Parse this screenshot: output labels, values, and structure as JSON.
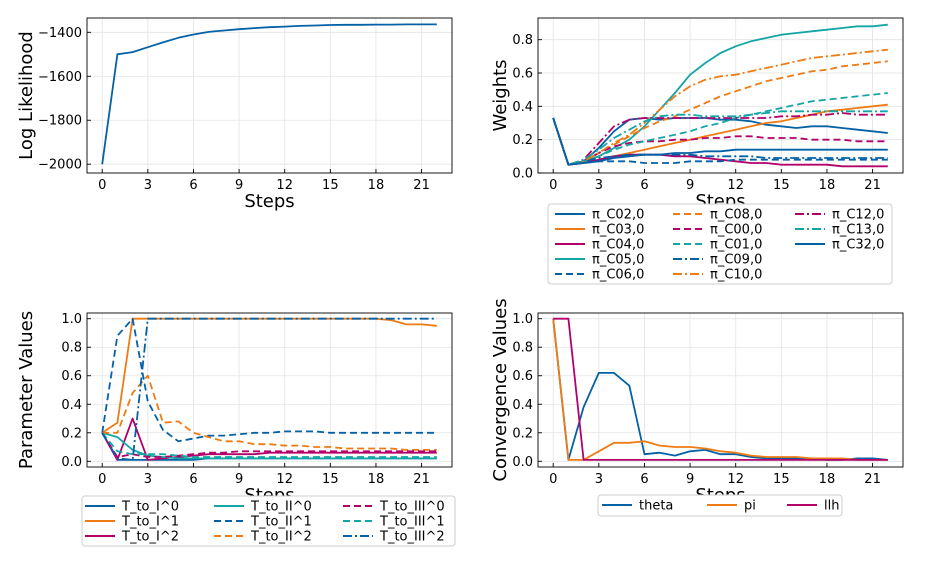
{
  "chart_data": [
    {
      "type": "line",
      "xlabel": "Steps",
      "ylabel": "Log Likelihood",
      "xlim": [
        -1,
        23
      ],
      "ylim": [
        -2040,
        -1335
      ],
      "xticks": [
        0,
        3,
        6,
        9,
        12,
        15,
        18,
        21
      ],
      "yticks": [
        -2000,
        -1800,
        -1600,
        -1400
      ],
      "grid": true,
      "x": [
        0,
        1,
        2,
        3,
        4,
        5,
        6,
        7,
        8,
        9,
        10,
        11,
        12,
        13,
        14,
        15,
        16,
        17,
        18,
        19,
        20,
        21,
        22
      ],
      "series": [
        {
          "color": "#0461a6",
          "style": "solid",
          "values": [
            -2000,
            -1500,
            -1490,
            -1468,
            -1446,
            -1425,
            -1410,
            -1398,
            -1392,
            -1386,
            -1381,
            -1377,
            -1374,
            -1371,
            -1369,
            -1367,
            -1366,
            -1366,
            -1365,
            -1365,
            -1364,
            -1364,
            -1364
          ]
        }
      ]
    },
    {
      "type": "line",
      "xlabel": "Steps",
      "ylabel": "Weights",
      "xlim": [
        -1,
        23
      ],
      "ylim": [
        0,
        0.93
      ],
      "xticks": [
        0,
        3,
        6,
        9,
        12,
        15,
        18,
        21
      ],
      "yticks": [
        0.0,
        0.2,
        0.4,
        0.6,
        0.8
      ],
      "grid": true,
      "legend": "below",
      "x": [
        0,
        1,
        2,
        3,
        4,
        5,
        6,
        7,
        8,
        9,
        10,
        11,
        12,
        13,
        14,
        15,
        16,
        17,
        18,
        19,
        20,
        21,
        22
      ],
      "series": [
        {
          "name": "π_C02,0",
          "color": "#0461a6",
          "style": "solid",
          "values": [
            0.33,
            0.05,
            0.07,
            0.15,
            0.25,
            0.32,
            0.33,
            0.32,
            0.33,
            0.33,
            0.33,
            0.32,
            0.32,
            0.31,
            0.29,
            0.28,
            0.27,
            0.28,
            0.28,
            0.27,
            0.26,
            0.25,
            0.24
          ]
        },
        {
          "name": "π_C03,0",
          "color": "#ee7b14",
          "style": "solid",
          "values": [
            0.33,
            0.05,
            0.06,
            0.08,
            0.1,
            0.12,
            0.14,
            0.16,
            0.18,
            0.2,
            0.22,
            0.24,
            0.26,
            0.28,
            0.3,
            0.31,
            0.33,
            0.35,
            0.37,
            0.38,
            0.39,
            0.4,
            0.41
          ]
        },
        {
          "name": "π_C04,0",
          "color": "#b3006b",
          "style": "solid",
          "values": [
            0.33,
            0.05,
            0.06,
            0.08,
            0.1,
            0.11,
            0.11,
            0.11,
            0.1,
            0.1,
            0.09,
            0.08,
            0.07,
            0.06,
            0.06,
            0.05,
            0.05,
            0.05,
            0.05,
            0.04,
            0.04,
            0.04,
            0.04
          ]
        },
        {
          "name": "π_C05,0",
          "color": "#14a5a5",
          "style": "solid",
          "values": [
            0.33,
            0.05,
            0.07,
            0.1,
            0.15,
            0.2,
            0.28,
            0.38,
            0.48,
            0.59,
            0.66,
            0.72,
            0.76,
            0.79,
            0.81,
            0.83,
            0.84,
            0.85,
            0.86,
            0.87,
            0.88,
            0.88,
            0.89
          ]
        },
        {
          "name": "π_C06,0",
          "color": "#0461a6",
          "style": "dashed",
          "values": [
            0.33,
            0.05,
            0.06,
            0.07,
            0.07,
            0.07,
            0.06,
            0.06,
            0.06,
            0.07,
            0.07,
            0.07,
            0.08,
            0.08,
            0.08,
            0.08,
            0.08,
            0.08,
            0.08,
            0.08,
            0.08,
            0.08,
            0.08
          ]
        },
        {
          "name": "π_C08,0",
          "color": "#ee7b14",
          "style": "dashed",
          "values": [
            0.33,
            0.05,
            0.07,
            0.12,
            0.17,
            0.22,
            0.27,
            0.31,
            0.34,
            0.38,
            0.42,
            0.46,
            0.49,
            0.52,
            0.55,
            0.57,
            0.59,
            0.61,
            0.62,
            0.64,
            0.65,
            0.66,
            0.67
          ]
        },
        {
          "name": "π_C00,0",
          "color": "#b3006b",
          "style": "dashed",
          "values": [
            0.33,
            0.05,
            0.07,
            0.12,
            0.16,
            0.18,
            0.19,
            0.19,
            0.2,
            0.2,
            0.21,
            0.21,
            0.22,
            0.22,
            0.21,
            0.21,
            0.21,
            0.2,
            0.2,
            0.2,
            0.19,
            0.19,
            0.19
          ]
        },
        {
          "name": "π_C01,0",
          "color": "#14a5a5",
          "style": "dashed",
          "values": [
            0.33,
            0.05,
            0.07,
            0.1,
            0.14,
            0.17,
            0.19,
            0.21,
            0.23,
            0.25,
            0.28,
            0.3,
            0.33,
            0.35,
            0.37,
            0.39,
            0.41,
            0.43,
            0.44,
            0.45,
            0.46,
            0.47,
            0.48
          ]
        },
        {
          "name": "π_C09,0",
          "color": "#0461a6",
          "style": "dashdot",
          "values": [
            0.33,
            0.05,
            0.07,
            0.09,
            0.1,
            0.11,
            0.11,
            0.11,
            0.11,
            0.11,
            0.1,
            0.1,
            0.1,
            0.1,
            0.09,
            0.09,
            0.09,
            0.09,
            0.09,
            0.09,
            0.09,
            0.09,
            0.09
          ]
        },
        {
          "name": "π_C10,0",
          "color": "#ee7b14",
          "style": "dashdot",
          "values": [
            0.33,
            0.05,
            0.07,
            0.12,
            0.18,
            0.23,
            0.3,
            0.38,
            0.46,
            0.52,
            0.56,
            0.58,
            0.59,
            0.61,
            0.63,
            0.65,
            0.67,
            0.69,
            0.7,
            0.71,
            0.72,
            0.73,
            0.74
          ]
        },
        {
          "name": "π_C12,0",
          "color": "#b3006b",
          "style": "dashdot",
          "values": [
            0.33,
            0.05,
            0.08,
            0.18,
            0.28,
            0.32,
            0.33,
            0.33,
            0.33,
            0.33,
            0.33,
            0.33,
            0.33,
            0.33,
            0.33,
            0.34,
            0.34,
            0.35,
            0.35,
            0.36,
            0.35,
            0.35,
            0.35
          ]
        },
        {
          "name": "π_C13,0",
          "color": "#14a5a5",
          "style": "dashdot",
          "values": [
            0.33,
            0.05,
            0.08,
            0.14,
            0.21,
            0.26,
            0.31,
            0.34,
            0.35,
            0.35,
            0.34,
            0.34,
            0.34,
            0.35,
            0.36,
            0.37,
            0.37,
            0.37,
            0.37,
            0.37,
            0.37,
            0.37,
            0.37
          ]
        },
        {
          "name": "π_C32,0",
          "color": "#0461a6",
          "style": "solid",
          "values": [
            0.33,
            0.05,
            0.06,
            0.07,
            0.09,
            0.1,
            0.11,
            0.11,
            0.12,
            0.12,
            0.13,
            0.13,
            0.14,
            0.14,
            0.14,
            0.14,
            0.14,
            0.14,
            0.14,
            0.14,
            0.14,
            0.14,
            0.14
          ]
        }
      ]
    },
    {
      "type": "line",
      "xlabel": "Steps",
      "ylabel": "Parameter Values",
      "xlim": [
        -1,
        23
      ],
      "ylim": [
        -0.04,
        1.04
      ],
      "xticks": [
        0,
        3,
        6,
        9,
        12,
        15,
        18,
        21
      ],
      "yticks": [
        0.0,
        0.2,
        0.4,
        0.6,
        0.8,
        1.0
      ],
      "grid": true,
      "legend": "below",
      "x": [
        0,
        1,
        2,
        3,
        4,
        5,
        6,
        7,
        8,
        9,
        10,
        11,
        12,
        13,
        14,
        15,
        16,
        17,
        18,
        19,
        20,
        21,
        22
      ],
      "series": [
        {
          "name": "T_to_I^0",
          "color": "#0461a6",
          "style": "solid",
          "values": [
            0.2,
            0.01,
            0.01,
            0.01,
            0.01,
            0.01,
            0.01,
            0.02,
            0.02,
            0.02,
            0.02,
            0.02,
            0.02,
            0.02,
            0.02,
            0.02,
            0.02,
            0.02,
            0.02,
            0.02,
            0.02,
            0.02,
            0.02
          ]
        },
        {
          "name": "T_to_I^1",
          "color": "#ee7b14",
          "style": "solid",
          "values": [
            0.2,
            0.27,
            1.0,
            1.0,
            1.0,
            1.0,
            1.0,
            1.0,
            1.0,
            1.0,
            1.0,
            1.0,
            1.0,
            1.0,
            1.0,
            1.0,
            1.0,
            1.0,
            1.0,
            0.99,
            0.96,
            0.96,
            0.95
          ]
        },
        {
          "name": "T_to_I^2",
          "color": "#b3006b",
          "style": "solid",
          "values": [
            0.2,
            0.01,
            0.3,
            0.01,
            0.02,
            0.03,
            0.04,
            0.05,
            0.05,
            0.05,
            0.05,
            0.06,
            0.06,
            0.06,
            0.06,
            0.06,
            0.06,
            0.06,
            0.06,
            0.06,
            0.06,
            0.06,
            0.06
          ]
        },
        {
          "name": "T_to_II^0",
          "color": "#14a5a5",
          "style": "solid",
          "values": [
            0.2,
            0.17,
            0.08,
            0.04,
            0.03,
            0.02,
            0.02,
            0.02,
            0.02,
            0.02,
            0.02,
            0.02,
            0.02,
            0.02,
            0.02,
            0.02,
            0.02,
            0.02,
            0.02,
            0.02,
            0.02,
            0.02,
            0.02
          ]
        },
        {
          "name": "T_to_II^1",
          "color": "#0461a6",
          "style": "dashed",
          "values": [
            0.2,
            0.88,
            1.0,
            0.42,
            0.22,
            0.14,
            0.16,
            0.18,
            0.18,
            0.19,
            0.2,
            0.2,
            0.21,
            0.21,
            0.21,
            0.2,
            0.2,
            0.2,
            0.2,
            0.2,
            0.2,
            0.2,
            0.2
          ]
        },
        {
          "name": "T_to_II^2",
          "color": "#ee7b14",
          "style": "dashed",
          "values": [
            0.2,
            0.2,
            0.48,
            0.6,
            0.27,
            0.28,
            0.2,
            0.17,
            0.14,
            0.14,
            0.12,
            0.12,
            0.11,
            0.11,
            0.1,
            0.1,
            0.09,
            0.09,
            0.09,
            0.09,
            0.08,
            0.08,
            0.08
          ]
        },
        {
          "name": "T_to_III^0",
          "color": "#b3006b",
          "style": "dashed",
          "values": [
            0.2,
            0.03,
            0.05,
            0.03,
            0.03,
            0.04,
            0.05,
            0.06,
            0.06,
            0.07,
            0.07,
            0.07,
            0.07,
            0.07,
            0.07,
            0.07,
            0.07,
            0.07,
            0.07,
            0.07,
            0.07,
            0.07,
            0.07
          ]
        },
        {
          "name": "T_to_III^1",
          "color": "#14a5a5",
          "style": "dashed",
          "values": [
            0.2,
            0.07,
            0.05,
            0.05,
            0.05,
            0.04,
            0.03,
            0.03,
            0.03,
            0.03,
            0.03,
            0.03,
            0.03,
            0.03,
            0.03,
            0.03,
            0.03,
            0.03,
            0.03,
            0.03,
            0.03,
            0.03,
            0.03
          ]
        },
        {
          "name": "T_to_III^2",
          "color": "#0461a6",
          "style": "dashdot",
          "values": [
            0.2,
            0.02,
            0.01,
            1.0,
            1.0,
            1.0,
            1.0,
            1.0,
            1.0,
            1.0,
            1.0,
            1.0,
            1.0,
            1.0,
            1.0,
            1.0,
            1.0,
            1.0,
            1.0,
            1.0,
            1.0,
            1.0,
            1.0
          ]
        }
      ]
    },
    {
      "type": "line",
      "xlabel": "Steps",
      "ylabel": "Convergence Values",
      "xlim": [
        -1,
        23
      ],
      "ylim": [
        -0.04,
        1.04
      ],
      "xticks": [
        0,
        3,
        6,
        9,
        12,
        15,
        18,
        21
      ],
      "yticks": [
        0.0,
        0.2,
        0.4,
        0.6,
        0.8,
        1.0
      ],
      "grid": true,
      "legend": "below",
      "x": [
        0,
        1,
        2,
        3,
        4,
        5,
        6,
        7,
        8,
        9,
        10,
        11,
        12,
        13,
        14,
        15,
        16,
        17,
        18,
        19,
        20,
        21,
        22
      ],
      "series": [
        {
          "name": "theta",
          "color": "#0461a6",
          "style": "solid",
          "values": [
            1.0,
            0.01,
            0.38,
            0.62,
            0.62,
            0.53,
            0.05,
            0.06,
            0.04,
            0.07,
            0.08,
            0.05,
            0.05,
            0.03,
            0.02,
            0.02,
            0.02,
            0.02,
            0.01,
            0.01,
            0.02,
            0.02,
            0.01
          ]
        },
        {
          "name": "pi",
          "color": "#ee7b14",
          "style": "solid",
          "values": [
            1.0,
            0.01,
            0.01,
            0.07,
            0.13,
            0.13,
            0.14,
            0.11,
            0.1,
            0.1,
            0.09,
            0.07,
            0.06,
            0.04,
            0.03,
            0.03,
            0.03,
            0.02,
            0.02,
            0.02,
            0.01,
            0.01,
            0.01
          ]
        },
        {
          "name": "llh",
          "color": "#b3006b",
          "style": "solid",
          "values": [
            1.0,
            1.0,
            0.01,
            0.01,
            0.01,
            0.01,
            0.01,
            0.01,
            0.01,
            0.01,
            0.01,
            0.01,
            0.01,
            0.01,
            0.01,
            0.01,
            0.01,
            0.01,
            0.01,
            0.01,
            0.01,
            0.01,
            0.01
          ]
        }
      ]
    }
  ]
}
